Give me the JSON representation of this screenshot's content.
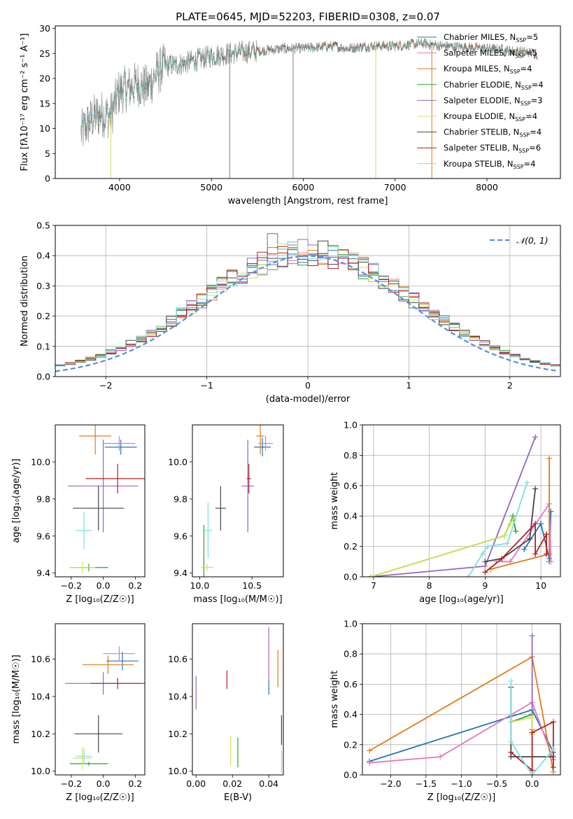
{
  "chart_data": [
    {
      "id": "spectrum",
      "type": "line",
      "title": "PLATE=0645, MJD=52203, FIBERID=0308, z=0.07",
      "xlabel": "wavelength [Angstrom, rest frame]",
      "ylabel": "Flux [fλ10⁻¹⁷ erg cm⁻² s⁻¹ A⁻¹]",
      "xlim": [
        3300,
        8800
      ],
      "ylim": [
        0,
        30.5
      ],
      "xticks": [
        4000,
        5000,
        6000,
        7000,
        8000
      ],
      "yticks": [
        0,
        5,
        10,
        15,
        20,
        25,
        30
      ],
      "grid": false,
      "legend_loc": "upper right",
      "data_range": [
        3580,
        8550
      ],
      "continuum": [
        [
          3580,
          9
        ],
        [
          3700,
          12
        ],
        [
          3800,
          13
        ],
        [
          3900,
          12.5
        ],
        [
          3950,
          15
        ],
        [
          4000,
          17.5
        ],
        [
          4100,
          18
        ],
        [
          4200,
          19
        ],
        [
          4300,
          18
        ],
        [
          4400,
          21
        ],
        [
          4500,
          22.5
        ],
        [
          4700,
          23
        ],
        [
          4900,
          24
        ],
        [
          5000,
          24.5
        ],
        [
          5200,
          25
        ],
        [
          5500,
          25.5
        ],
        [
          5800,
          26
        ],
        [
          6000,
          26
        ],
        [
          6300,
          26.5
        ],
        [
          6500,
          26
        ],
        [
          6700,
          26.5
        ],
        [
          7000,
          26.5
        ],
        [
          7300,
          27
        ],
        [
          7500,
          26.5
        ],
        [
          8000,
          26
        ],
        [
          8300,
          25.5
        ],
        [
          8550,
          25
        ]
      ],
      "series": [
        {
          "name": "Chabrier MILES, N",
          "sub": "SSP",
          "suffix": "=5",
          "color": "#1f77b4"
        },
        {
          "name": "Salpeter MILES, N",
          "sub": "SSP",
          "suffix": "=5",
          "color": "#e377c2"
        },
        {
          "name": "Kroupa MILES, N",
          "sub": "SSP",
          "suffix": "=4",
          "color": "#e07b1a"
        },
        {
          "name": "Chabrier ELODIE, N",
          "sub": "SSP",
          "suffix": "=4",
          "color": "#2ca02c"
        },
        {
          "name": "Salpeter ELODIE, N",
          "sub": "SSP",
          "suffix": "=3",
          "color": "#9467bd"
        },
        {
          "name": "Kroupa ELODIE, N",
          "sub": "SSP",
          "suffix": "=4",
          "color": "#d4e157"
        },
        {
          "name": "Chabrier STELIB, N",
          "sub": "SSP",
          "suffix": "=4",
          "color": "#444444"
        },
        {
          "name": "Salpeter STELIB, N",
          "sub": "SSP",
          "suffix": "=6",
          "color": "#b22222"
        },
        {
          "name": "Kroupa STELIB, N",
          "sub": "SSP",
          "suffix": "=4",
          "color": "#80dfe0"
        }
      ]
    },
    {
      "id": "residuals",
      "type": "histogram",
      "xlabel": "(data-model)/error",
      "ylabel": "Normed distribution",
      "xlim": [
        -2.5,
        2.5
      ],
      "ylim": [
        0,
        0.5
      ],
      "xticks": [
        -2,
        -1,
        0,
        1,
        2
      ],
      "yticks": [
        0.0,
        0.1,
        0.2,
        0.3,
        0.4,
        0.5
      ],
      "grid": true,
      "bin_width": 0.1,
      "legend": "𝒩(0, 1)",
      "legend_loc": "upper right",
      "gaussian_color": "#5b8fd6"
    },
    {
      "id": "age_vs_Z",
      "type": "errorbar",
      "xlabel": "Z [log₁₀(Z/Z☉)]",
      "ylabel": "age  [log₁₀(age/yr)]",
      "xlim": [
        -0.3,
        0.26
      ],
      "ylim": [
        9.38,
        10.2
      ],
      "xticks": [
        -0.2,
        0.0,
        0.2
      ],
      "yticks": [
        9.4,
        9.6,
        9.8,
        10.0
      ],
      "points": [
        {
          "x": 0.11,
          "y": 10.08,
          "xerr": 0.1,
          "yerr": 0.04,
          "color": "#1f77b4"
        },
        {
          "x": 0.1,
          "y": 10.1,
          "xerr": 0.1,
          "yerr": 0.04,
          "color": "#e377c2"
        },
        {
          "x": -0.05,
          "y": 10.14,
          "xerr": 0.1,
          "yerr": 0.1,
          "color": "#e07b1a"
        },
        {
          "x": -0.09,
          "y": 9.43,
          "xerr": 0.12,
          "yerr": 0.02,
          "color": "#2ca02c"
        },
        {
          "x": 0.0,
          "y": 9.87,
          "xerr": 0.22,
          "yerr": 0.25,
          "color": "#9467bd"
        },
        {
          "x": -0.13,
          "y": 9.43,
          "xerr": 0.08,
          "yerr": 0.03,
          "color": "#d4e157"
        },
        {
          "x": -0.03,
          "y": 9.75,
          "xerr": 0.16,
          "yerr": 0.12,
          "color": "#444444"
        },
        {
          "x": 0.09,
          "y": 9.91,
          "xerr": 0.2,
          "yerr": 0.08,
          "color": "#b22222"
        },
        {
          "x": -0.12,
          "y": 9.63,
          "xerr": 0.05,
          "yerr": 0.1,
          "color": "#80dfe0"
        }
      ]
    },
    {
      "id": "age_vs_mass",
      "type": "errorbar",
      "xlabel": "mass [log₁₀(M/M☉)]",
      "ylabel": "",
      "xlim": [
        9.93,
        10.8
      ],
      "ylim": [
        9.38,
        10.2
      ],
      "xticks": [
        10.0,
        10.5
      ],
      "yticks": [
        9.4,
        9.6,
        9.8,
        10.0
      ],
      "points": [
        {
          "x": 10.6,
          "y": 10.08,
          "xerr": 0.08,
          "yerr": 0.05,
          "color": "#1f77b4"
        },
        {
          "x": 10.63,
          "y": 10.1,
          "xerr": 0.07,
          "yerr": 0.04,
          "color": "#e377c2"
        },
        {
          "x": 10.58,
          "y": 10.14,
          "xerr": 0.04,
          "yerr": 0.1,
          "color": "#e07b1a"
        },
        {
          "x": 10.04,
          "y": 9.43,
          "xerr": 0.01,
          "yerr": 0.23,
          "color": "#2ca02c"
        },
        {
          "x": 10.46,
          "y": 9.87,
          "xerr": 0.06,
          "yerr": 0.25,
          "color": "#9467bd"
        },
        {
          "x": 10.07,
          "y": 9.43,
          "xerr": 0.06,
          "yerr": 0.02,
          "color": "#d4e157"
        },
        {
          "x": 10.2,
          "y": 9.75,
          "xerr": 0.05,
          "yerr": 0.12,
          "color": "#444444"
        },
        {
          "x": 10.47,
          "y": 9.91,
          "xerr": 0.02,
          "yerr": 0.08,
          "color": "#b22222"
        },
        {
          "x": 10.08,
          "y": 9.63,
          "xerr": 0.04,
          "yerr": 0.15,
          "color": "#80dfe0"
        }
      ]
    },
    {
      "id": "weight_vs_age",
      "type": "line",
      "xlabel": "age  [log₁₀(age/yr)]",
      "ylabel": "mass weight",
      "xlim": [
        6.8,
        10.35
      ],
      "ylim": [
        0,
        1.0
      ],
      "xticks": [
        7,
        8,
        9,
        10
      ],
      "yticks": [
        0.0,
        0.2,
        0.4,
        0.6,
        0.8,
        1.0
      ],
      "grid": true,
      "series": [
        {
          "color": "#1f77b4",
          "points": [
            [
              9.7,
              0.18
            ],
            [
              10.0,
              0.35
            ],
            [
              10.15,
              0.12
            ],
            [
              10.18,
              0.43
            ],
            [
              10.15,
              0.1
            ]
          ]
        },
        {
          "color": "#e377c2",
          "points": [
            [
              9.2,
              0.1
            ],
            [
              9.45,
              0.1
            ],
            [
              10.15,
              0.48
            ],
            [
              10.18,
              0.1
            ]
          ]
        },
        {
          "color": "#e07b1a",
          "points": [
            [
              9.1,
              0.05
            ],
            [
              10.15,
              0.15
            ],
            [
              10.15,
              0.78
            ]
          ]
        },
        {
          "color": "#2ca02c",
          "points": [
            [
              6.95,
              0.0
            ],
            [
              9.35,
              0.27
            ],
            [
              9.5,
              0.4
            ],
            [
              9.55,
              0.3
            ]
          ]
        },
        {
          "color": "#9467bd",
          "points": [
            [
              6.95,
              0.0
            ],
            [
              9.0,
              0.07
            ],
            [
              9.9,
              0.92
            ]
          ]
        },
        {
          "color": "#d4e157",
          "points": [
            [
              6.95,
              0.0
            ],
            [
              9.35,
              0.27
            ],
            [
              9.45,
              0.35
            ],
            [
              9.5,
              0.38
            ]
          ]
        },
        {
          "color": "#444444",
          "points": [
            [
              9.0,
              0.1
            ],
            [
              9.3,
              0.12
            ],
            [
              9.8,
              0.25
            ],
            [
              9.9,
              0.58
            ]
          ]
        },
        {
          "color": "#b22222",
          "points": [
            [
              9.0,
              0.03
            ],
            [
              9.3,
              0.12
            ],
            [
              9.9,
              0.35
            ],
            [
              9.9,
              0.15
            ],
            [
              10.1,
              0.28
            ],
            [
              10.1,
              0.15
            ]
          ]
        },
        {
          "color": "#80dfe0",
          "points": [
            [
              8.7,
              0.0
            ],
            [
              8.95,
              0.15
            ],
            [
              9.05,
              0.2
            ],
            [
              9.4,
              0.22
            ],
            [
              9.75,
              0.62
            ]
          ]
        }
      ]
    },
    {
      "id": "mass_vs_Z",
      "type": "errorbar",
      "xlabel": "Z [log₁₀(Z/Z☉)]",
      "ylabel": "mass [log₁₀(M/M☉)]",
      "xlim": [
        -0.3,
        0.26
      ],
      "ylim": [
        9.98,
        10.79
      ],
      "xticks": [
        -0.2,
        0.0,
        0.2
      ],
      "yticks": [
        10.0,
        10.2,
        10.4,
        10.6
      ],
      "points": [
        {
          "x": 0.12,
          "y": 10.59,
          "xerr": 0.1,
          "yerr": 0.05,
          "color": "#1f77b4"
        },
        {
          "x": 0.1,
          "y": 10.63,
          "xerr": 0.1,
          "yerr": 0.04,
          "color": "#e377c2"
        },
        {
          "x": 0.03,
          "y": 10.57,
          "xerr": 0.16,
          "yerr": 0.05,
          "color": "#e07b1a"
        },
        {
          "x": -0.09,
          "y": 10.04,
          "xerr": 0.12,
          "yerr": 0.01,
          "color": "#2ca02c"
        },
        {
          "x": 0.0,
          "y": 10.47,
          "xerr": 0.24,
          "yerr": 0.06,
          "color": "#9467bd"
        },
        {
          "x": -0.13,
          "y": 10.07,
          "xerr": 0.06,
          "yerr": 0.06,
          "color": "#d4e157"
        },
        {
          "x": -0.03,
          "y": 10.2,
          "xerr": 0.15,
          "yerr": 0.1,
          "color": "#444444"
        },
        {
          "x": 0.09,
          "y": 10.47,
          "xerr": 0.17,
          "yerr": 0.03,
          "color": "#b22222"
        },
        {
          "x": -0.12,
          "y": 10.08,
          "xerr": 0.05,
          "yerr": 0.04,
          "color": "#80dfe0"
        }
      ]
    },
    {
      "id": "mass_vs_EBV",
      "type": "errorbar",
      "xlabel": "E(B-V)",
      "ylabel": "",
      "xlim": [
        -0.002,
        0.048
      ],
      "ylim": [
        9.98,
        10.79
      ],
      "xticks": [
        0.0,
        0.02,
        0.04
      ],
      "yticks": [
        10.0,
        10.2,
        10.4,
        10.6
      ],
      "points": [
        {
          "x": 0.04,
          "y": 10.59,
          "xerr": 0.0,
          "yerr": 0.18,
          "color": "#1f77b4"
        },
        {
          "x": 0.04,
          "y": 10.63,
          "xerr": 0.0,
          "yerr": 0.14,
          "color": "#e377c2"
        },
        {
          "x": 0.045,
          "y": 10.55,
          "xerr": 0.0,
          "yerr": 0.1,
          "color": "#e07b1a"
        },
        {
          "x": 0.023,
          "y": 10.1,
          "xerr": 0.0,
          "yerr": 0.08,
          "color": "#2ca02c"
        },
        {
          "x": 0.0,
          "y": 10.42,
          "xerr": 0.0,
          "yerr": 0.09,
          "color": "#9467bd"
        },
        {
          "x": 0.019,
          "y": 10.11,
          "xerr": 0.0,
          "yerr": 0.08,
          "color": "#d4e157"
        },
        {
          "x": 0.047,
          "y": 10.22,
          "xerr": 0.0,
          "yerr": 0.08,
          "color": "#444444"
        },
        {
          "x": 0.017,
          "y": 10.49,
          "xerr": 0.0,
          "yerr": 0.05,
          "color": "#b22222"
        },
        {
          "x": 0.047,
          "y": 10.05,
          "xerr": 0.0,
          "yerr": 0.06,
          "color": "#80dfe0"
        }
      ]
    },
    {
      "id": "weight_vs_Z",
      "type": "line",
      "xlabel": "Z [log₁₀(Z/Z☉)]",
      "ylabel": "mass weight",
      "xlim": [
        -2.4,
        0.4
      ],
      "ylim": [
        0,
        1.0
      ],
      "xticks": [
        -2.0,
        -1.5,
        -1.0,
        -0.5,
        0.0
      ],
      "yticks": [
        0.0,
        0.2,
        0.4,
        0.6,
        0.8,
        1.0
      ],
      "grid": true,
      "series": [
        {
          "color": "#1f77b4",
          "points": [
            [
              -2.3,
              0.09
            ],
            [
              0.0,
              0.43
            ],
            [
              0.3,
              0.15
            ],
            [
              0.3,
              0.1
            ]
          ]
        },
        {
          "color": "#e377c2",
          "points": [
            [
              -2.3,
              0.08
            ],
            [
              -1.3,
              0.12
            ],
            [
              0.0,
              0.48
            ],
            [
              0.3,
              0.1
            ]
          ]
        },
        {
          "color": "#e07b1a",
          "points": [
            [
              -2.3,
              0.16
            ],
            [
              0.0,
              0.78
            ],
            [
              0.3,
              0.02
            ]
          ]
        },
        {
          "color": "#2ca02c",
          "points": [
            [
              -0.3,
              0.35
            ],
            [
              0.0,
              0.4
            ],
            [
              0.0,
              0.27
            ]
          ]
        },
        {
          "color": "#9467bd",
          "points": [
            [
              0.0,
              0.92
            ],
            [
              0.0,
              0.3
            ]
          ]
        },
        {
          "color": "#d4e157",
          "points": [
            [
              -0.3,
              0.35
            ],
            [
              0.0,
              0.38
            ],
            [
              0.0,
              0.27
            ]
          ]
        },
        {
          "color": "#444444",
          "points": [
            [
              -0.3,
              0.58
            ],
            [
              -0.3,
              0.12
            ],
            [
              0.3,
              0.12
            ]
          ]
        },
        {
          "color": "#b22222",
          "points": [
            [
              -0.3,
              0.15
            ],
            [
              0.0,
              0.03
            ],
            [
              0.0,
              0.28
            ],
            [
              0.3,
              0.35
            ],
            [
              0.3,
              0.05
            ]
          ]
        },
        {
          "color": "#80dfe0",
          "points": [
            [
              -0.3,
              0.62
            ],
            [
              -0.3,
              0.22
            ],
            [
              0.0,
              0.0
            ],
            [
              0.3,
              0.17
            ]
          ]
        }
      ]
    }
  ]
}
